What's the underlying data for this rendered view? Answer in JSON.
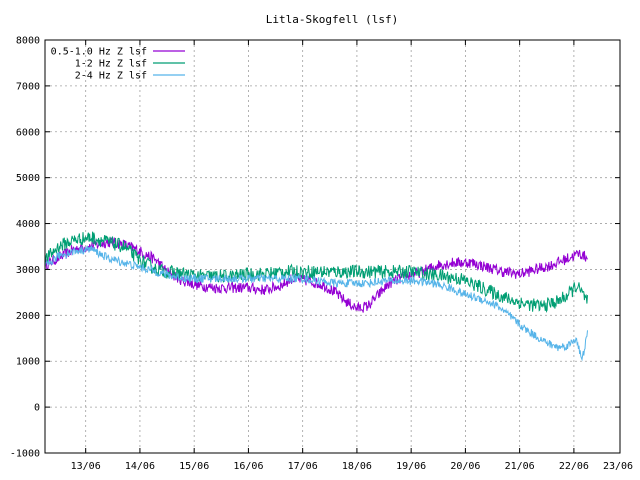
{
  "chart_data": {
    "type": "line",
    "title": "Litla-Skogfell (lsf)",
    "xlabel": "",
    "ylabel": "",
    "ylim": [
      -1000,
      8000
    ],
    "yticks": [
      -1000,
      0,
      1000,
      2000,
      3000,
      4000,
      5000,
      6000,
      7000,
      8000
    ],
    "xlim": [
      12.75,
      23.35
    ],
    "xticks": [
      {
        "value": 13.5,
        "label": "13/06"
      },
      {
        "value": 14.5,
        "label": "14/06"
      },
      {
        "value": 15.5,
        "label": "15/06"
      },
      {
        "value": 16.5,
        "label": "16/06"
      },
      {
        "value": 17.5,
        "label": "17/06"
      },
      {
        "value": 18.5,
        "label": "18/06"
      },
      {
        "value": 19.5,
        "label": "19/06"
      },
      {
        "value": 20.5,
        "label": "20/06"
      },
      {
        "value": 21.5,
        "label": "21/06"
      },
      {
        "value": 22.5,
        "label": "22/06"
      },
      {
        "value": 23.5,
        "label": "23/06"
      }
    ],
    "grid": true,
    "legend_position": "top-left",
    "series": [
      {
        "name": "0.5-1.0 Hz Z lsf",
        "color": "#9400d3",
        "noise": 120,
        "x": [
          12.75,
          13.0,
          13.3,
          13.6,
          13.9,
          14.2,
          14.5,
          14.8,
          15.0,
          15.3,
          15.6,
          15.9,
          16.2,
          16.5,
          16.8,
          17.1,
          17.3,
          17.6,
          17.9,
          18.1,
          18.3,
          18.5,
          18.7,
          18.9,
          19.1,
          19.4,
          19.7,
          20.0,
          20.3,
          20.6,
          20.9,
          21.2,
          21.5,
          21.8,
          22.1,
          22.4,
          22.6,
          22.75
        ],
        "y": [
          3100,
          3250,
          3450,
          3500,
          3600,
          3550,
          3400,
          3200,
          2950,
          2750,
          2650,
          2600,
          2600,
          2600,
          2550,
          2650,
          2800,
          2750,
          2650,
          2500,
          2300,
          2150,
          2200,
          2450,
          2700,
          2850,
          2950,
          3100,
          3150,
          3150,
          3050,
          2950,
          2900,
          3000,
          3100,
          3250,
          3350,
          3250
        ]
      },
      {
        "name": "1-2 Hz Z lsf",
        "color": "#009e73",
        "noise": 150,
        "x": [
          12.75,
          13.0,
          13.3,
          13.6,
          13.9,
          14.2,
          14.5,
          14.8,
          15.0,
          15.3,
          15.6,
          15.9,
          16.2,
          16.5,
          16.8,
          17.1,
          17.4,
          17.7,
          18.0,
          18.3,
          18.6,
          18.9,
          19.2,
          19.5,
          19.8,
          20.1,
          20.4,
          20.7,
          21.0,
          21.3,
          21.6,
          21.9,
          22.2,
          22.4,
          22.55,
          22.75
        ],
        "y": [
          3200,
          3500,
          3650,
          3700,
          3600,
          3500,
          3200,
          3000,
          2950,
          2900,
          2850,
          2850,
          2850,
          2900,
          2900,
          2950,
          2950,
          2950,
          2950,
          2950,
          2950,
          2950,
          2950,
          2950,
          2900,
          2850,
          2800,
          2650,
          2500,
          2350,
          2250,
          2200,
          2300,
          2450,
          2650,
          2300
        ]
      },
      {
        "name": "2-4 Hz Z lsf",
        "color": "#56b4e9",
        "noise": 90,
        "x": [
          12.75,
          13.0,
          13.3,
          13.6,
          13.9,
          14.2,
          14.5,
          14.8,
          15.1,
          15.4,
          15.7,
          16.0,
          16.3,
          16.6,
          16.9,
          17.2,
          17.5,
          17.8,
          18.1,
          18.4,
          18.7,
          19.0,
          19.3,
          19.6,
          19.9,
          20.2,
          20.5,
          20.8,
          21.1,
          21.4,
          21.6,
          21.8,
          22.0,
          22.2,
          22.4,
          22.55,
          22.65,
          22.75
        ],
        "y": [
          3050,
          3300,
          3400,
          3450,
          3250,
          3150,
          3050,
          2950,
          2850,
          2800,
          2800,
          2800,
          2800,
          2800,
          2800,
          2800,
          2800,
          2750,
          2700,
          2700,
          2700,
          2750,
          2750,
          2750,
          2700,
          2600,
          2450,
          2350,
          2200,
          1900,
          1700,
          1550,
          1400,
          1300,
          1350,
          1500,
          1000,
          1600
        ]
      }
    ]
  }
}
